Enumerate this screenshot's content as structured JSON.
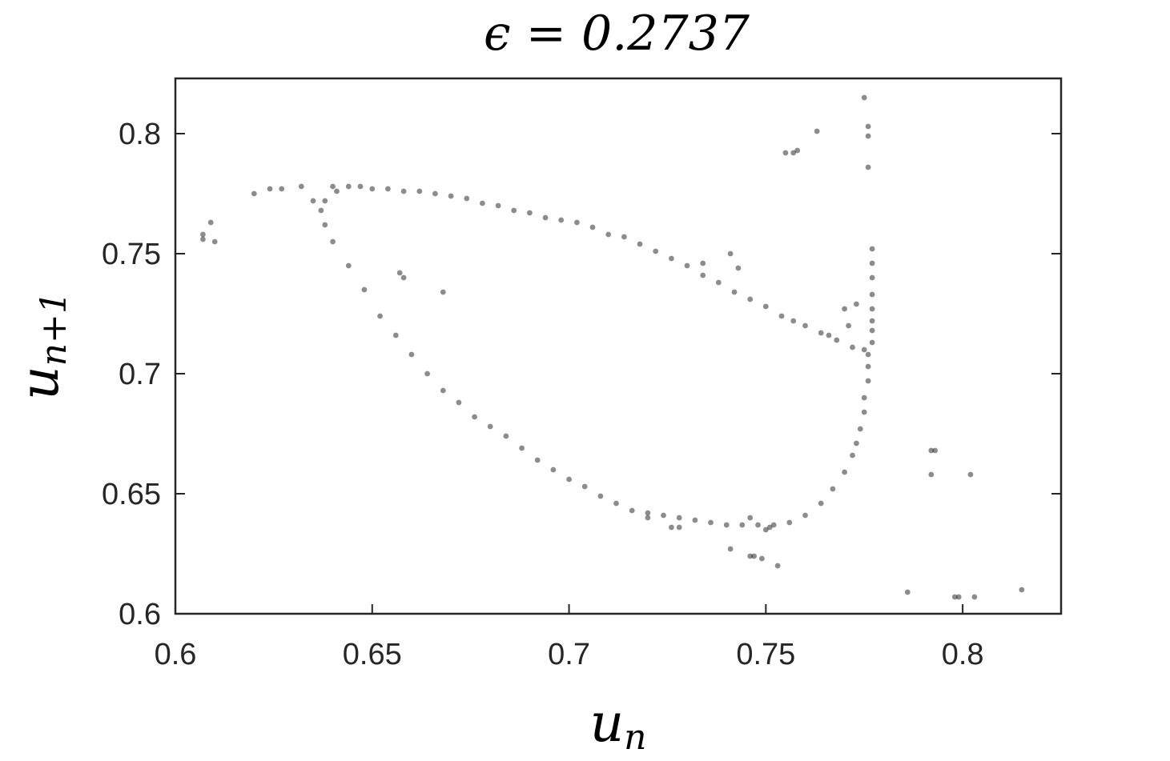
{
  "chart_data": {
    "type": "scatter",
    "title": "ϵ = 0.2737",
    "xlabel": "u_n",
    "ylabel": "u_n+1",
    "xlim": [
      0.6,
      0.825
    ],
    "ylim": [
      0.6,
      0.823
    ],
    "xticks": [
      "0.6",
      "0.65",
      "0.7",
      "0.75",
      "0.8"
    ],
    "yticks": [
      "0.6",
      "0.65",
      "0.7",
      "0.75",
      "0.8"
    ],
    "grid": false,
    "marker_color": "#000000",
    "series": [
      {
        "points": [
          [
            0.64,
            0.778
          ],
          [
            0.644,
            0.778
          ],
          [
            0.647,
            0.778
          ],
          [
            0.65,
            0.777
          ],
          [
            0.654,
            0.777
          ],
          [
            0.658,
            0.776
          ],
          [
            0.662,
            0.776
          ],
          [
            0.666,
            0.775
          ],
          [
            0.67,
            0.774
          ],
          [
            0.674,
            0.773
          ],
          [
            0.678,
            0.771
          ],
          [
            0.682,
            0.77
          ],
          [
            0.686,
            0.768
          ],
          [
            0.69,
            0.767
          ],
          [
            0.694,
            0.765
          ],
          [
            0.698,
            0.764
          ],
          [
            0.702,
            0.763
          ],
          [
            0.706,
            0.761
          ],
          [
            0.71,
            0.758
          ],
          [
            0.714,
            0.757
          ],
          [
            0.718,
            0.754
          ],
          [
            0.722,
            0.751
          ],
          [
            0.726,
            0.748
          ],
          [
            0.73,
            0.745
          ],
          [
            0.734,
            0.741
          ],
          [
            0.738,
            0.738
          ],
          [
            0.742,
            0.734
          ],
          [
            0.746,
            0.731
          ],
          [
            0.75,
            0.728
          ],
          [
            0.754,
            0.724
          ],
          [
            0.757,
            0.722
          ],
          [
            0.76,
            0.72
          ],
          [
            0.764,
            0.717
          ],
          [
            0.768,
            0.714
          ],
          [
            0.772,
            0.711
          ],
          [
            0.775,
            0.71
          ],
          [
            0.777,
            0.718
          ],
          [
            0.777,
            0.713
          ],
          [
            0.776,
            0.708
          ],
          [
            0.776,
            0.703
          ],
          [
            0.776,
            0.697
          ],
          [
            0.775,
            0.69
          ],
          [
            0.775,
            0.684
          ],
          [
            0.774,
            0.677
          ],
          [
            0.773,
            0.671
          ],
          [
            0.772,
            0.666
          ],
          [
            0.77,
            0.659
          ],
          [
            0.767,
            0.652
          ],
          [
            0.764,
            0.646
          ],
          [
            0.76,
            0.641
          ],
          [
            0.756,
            0.638
          ],
          [
            0.752,
            0.637
          ],
          [
            0.748,
            0.637
          ],
          [
            0.744,
            0.637
          ],
          [
            0.74,
            0.637
          ],
          [
            0.736,
            0.638
          ],
          [
            0.732,
            0.639
          ],
          [
            0.728,
            0.64
          ],
          [
            0.724,
            0.641
          ],
          [
            0.72,
            0.642
          ],
          [
            0.716,
            0.643
          ],
          [
            0.712,
            0.646
          ],
          [
            0.708,
            0.649
          ],
          [
            0.704,
            0.653
          ],
          [
            0.7,
            0.656
          ],
          [
            0.696,
            0.66
          ],
          [
            0.692,
            0.664
          ],
          [
            0.688,
            0.669
          ],
          [
            0.684,
            0.674
          ],
          [
            0.68,
            0.678
          ],
          [
            0.676,
            0.682
          ],
          [
            0.672,
            0.688
          ],
          [
            0.668,
            0.693
          ],
          [
            0.664,
            0.7
          ],
          [
            0.66,
            0.708
          ],
          [
            0.656,
            0.716
          ],
          [
            0.652,
            0.724
          ],
          [
            0.648,
            0.735
          ],
          [
            0.644,
            0.745
          ],
          [
            0.64,
            0.755
          ],
          [
            0.638,
            0.762
          ],
          [
            0.637,
            0.768
          ],
          [
            0.638,
            0.772
          ],
          [
            0.641,
            0.776
          ],
          [
            0.777,
            0.722
          ],
          [
            0.777,
            0.727
          ],
          [
            0.777,
            0.733
          ],
          [
            0.777,
            0.74
          ],
          [
            0.777,
            0.746
          ],
          [
            0.777,
            0.752
          ],
          [
            0.776,
            0.786
          ],
          [
            0.776,
            0.799
          ],
          [
            0.776,
            0.803
          ],
          [
            0.775,
            0.815
          ],
          [
            0.62,
            0.775
          ],
          [
            0.624,
            0.777
          ],
          [
            0.627,
            0.777
          ],
          [
            0.632,
            0.778
          ],
          [
            0.635,
            0.772
          ],
          [
            0.607,
            0.758
          ],
          [
            0.607,
            0.756
          ],
          [
            0.609,
            0.763
          ],
          [
            0.61,
            0.755
          ],
          [
            0.657,
            0.742
          ],
          [
            0.658,
            0.74
          ],
          [
            0.668,
            0.734
          ],
          [
            0.734,
            0.746
          ],
          [
            0.741,
            0.75
          ],
          [
            0.743,
            0.744
          ],
          [
            0.755,
            0.792
          ],
          [
            0.757,
            0.792
          ],
          [
            0.758,
            0.793
          ],
          [
            0.763,
            0.801
          ],
          [
            0.77,
            0.727
          ],
          [
            0.771,
            0.72
          ],
          [
            0.773,
            0.729
          ],
          [
            0.766,
            0.716
          ],
          [
            0.72,
            0.64
          ],
          [
            0.726,
            0.636
          ],
          [
            0.728,
            0.636
          ],
          [
            0.741,
            0.627
          ],
          [
            0.746,
            0.624
          ],
          [
            0.747,
            0.624
          ],
          [
            0.749,
            0.623
          ],
          [
            0.753,
            0.62
          ],
          [
            0.746,
            0.64
          ],
          [
            0.751,
            0.636
          ],
          [
            0.75,
            0.635
          ],
          [
            0.786,
            0.609
          ],
          [
            0.792,
            0.668
          ],
          [
            0.793,
            0.668
          ],
          [
            0.792,
            0.658
          ],
          [
            0.798,
            0.607
          ],
          [
            0.799,
            0.607
          ],
          [
            0.802,
            0.658
          ],
          [
            0.803,
            0.607
          ],
          [
            0.815,
            0.61
          ]
        ]
      }
    ]
  }
}
